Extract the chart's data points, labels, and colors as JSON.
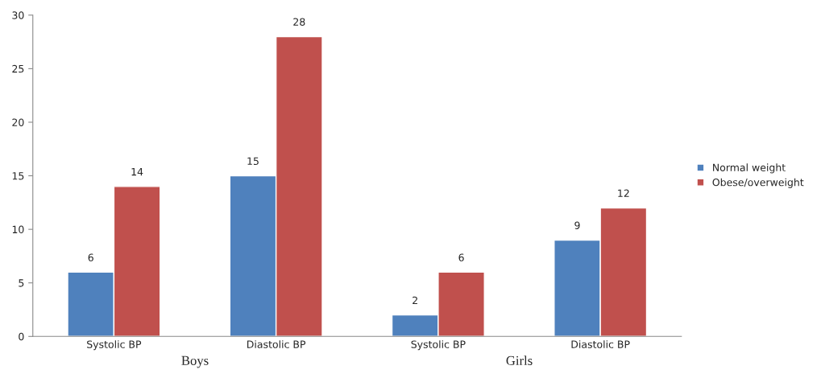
{
  "chart_data": {
    "type": "bar",
    "categories": [
      "Systolic BP",
      "Diastolic BP",
      "Systolic BP",
      "Diastolic BP"
    ],
    "series": [
      {
        "name": "Normal weight",
        "color": "#4f81bd",
        "values": [
          6,
          15,
          2,
          9
        ]
      },
      {
        "name": "Obese/overweight",
        "color": "#c0504d",
        "values": [
          14,
          28,
          6,
          12
        ]
      }
    ],
    "ylim": [
      0,
      30
    ],
    "yticks": [
      0,
      5,
      10,
      15,
      20,
      25,
      30
    ],
    "data_labels": true,
    "grid": false,
    "legend": "right",
    "annotations": [
      "Boys",
      "Girls"
    ]
  }
}
